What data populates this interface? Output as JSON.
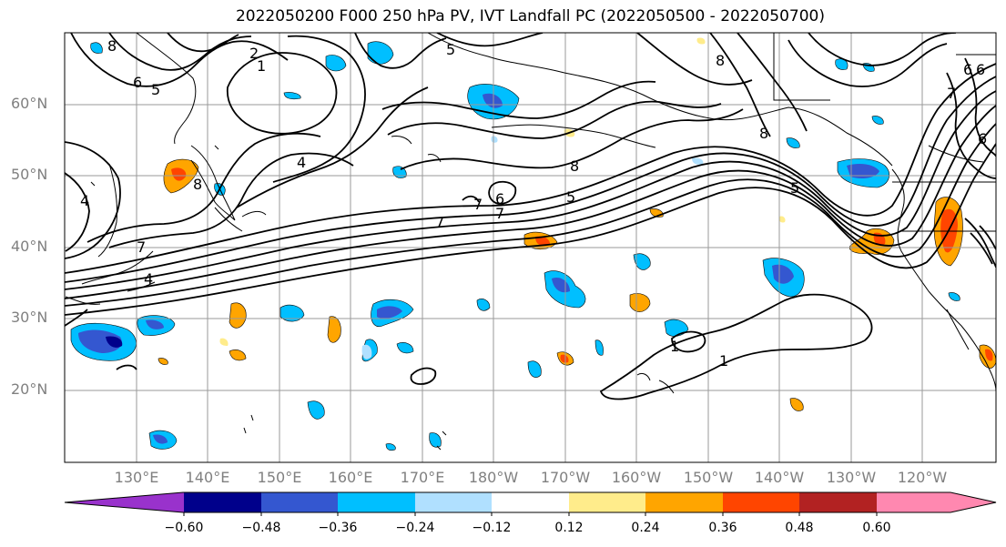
{
  "title": "2022050200 F000 250 hPa PV, IVT Landfall PC (2022050500 - 2022050700)",
  "map": {
    "lat_labels": [
      "60°N",
      "50°N",
      "40°N",
      "30°N",
      "20°N"
    ],
    "lon_labels": [
      "130°E",
      "140°E",
      "150°E",
      "160°E",
      "170°E",
      "180°W",
      "170°W",
      "160°W",
      "150°W",
      "140°W",
      "130°W",
      "120°W"
    ],
    "contour_labels": [
      "8",
      "6",
      "5",
      "7",
      "1",
      "2",
      "4",
      "4",
      "8",
      "7",
      "4",
      "5",
      "8",
      "5",
      "7",
      "6",
      "7",
      "8",
      "5",
      "6",
      "6",
      "7",
      "1",
      "1",
      "8",
      "6"
    ]
  },
  "colorbar": {
    "ticks": [
      "−0.60",
      "−0.48",
      "−0.36",
      "−0.24",
      "−0.12",
      "0.12",
      "0.24",
      "0.36",
      "0.48",
      "0.60"
    ],
    "colors": [
      "#9932cc",
      "#00008b",
      "#3457d0",
      "#00bfff",
      "#b0e0ff",
      "#ffffff",
      "#ffec8b",
      "#ffa500",
      "#ff4500",
      "#b22222",
      "#ff88b0"
    ]
  },
  "colors": {
    "neg_strong": "#3457d0",
    "neg_mid": "#00bfff",
    "neg_weak": "#b0e0ff",
    "pos_weak": "#ffec8b",
    "pos_mid": "#ffa500",
    "pos_strong": "#ff4500"
  }
}
